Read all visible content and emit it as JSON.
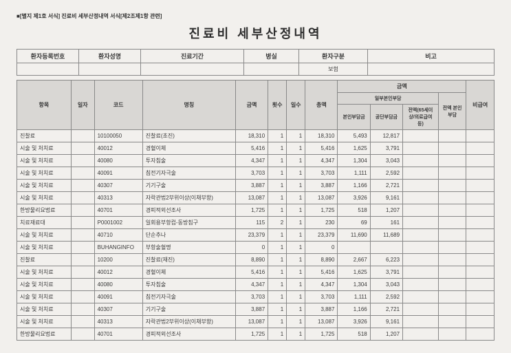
{
  "form_note": "■[별지 제1호 서식] 진료비 세부산정내역 서식[제2조제1항 관련]",
  "title": "진료비 세부산정내역",
  "patient_header": {
    "labels": {
      "reg_no": "환자등록번호",
      "name": "환자성명",
      "period": "진료기간",
      "room": "병실",
      "category": "환자구분",
      "remark": "비고"
    },
    "values": {
      "reg_no": "",
      "name": "",
      "period": "",
      "room": "",
      "category": "보험",
      "remark": ""
    }
  },
  "detail_header": {
    "item": "항목",
    "date": "일자",
    "code": "코드",
    "name": "명칭",
    "amount": "금액",
    "count": "횟수",
    "days": "일수",
    "total": "총액",
    "pay_group": "금액",
    "pay_sub1": "일부본인부담",
    "pay_self": "본인부담금",
    "pay_corp": "공단부담금",
    "pay_excess": "전액(65세이상/의료급여 등)",
    "pay_full": "전액 본인부담",
    "noncov": "비급여"
  },
  "rows": [
    {
      "item": "진찰료",
      "date": "",
      "code": "10100050",
      "name": "진찰료(초진)",
      "amount": "18,310",
      "count": "1",
      "days": "1",
      "total": "18,310",
      "self": "5,493",
      "corp": "12,817",
      "excess": "",
      "full": "",
      "noncov": ""
    },
    {
      "item": "시술 및 처치료",
      "date": "",
      "code": "40012",
      "name": "경혈이체",
      "amount": "5,416",
      "count": "1",
      "days": "1",
      "total": "5,416",
      "self": "1,625",
      "corp": "3,791",
      "excess": "",
      "full": "",
      "noncov": ""
    },
    {
      "item": "시술 및 처치료",
      "date": "",
      "code": "40080",
      "name": "투자침술",
      "amount": "4,347",
      "count": "1",
      "days": "1",
      "total": "4,347",
      "self": "1,304",
      "corp": "3,043",
      "excess": "",
      "full": "",
      "noncov": ""
    },
    {
      "item": "시술 및 처치료",
      "date": "",
      "code": "40091",
      "name": "침전기자극술",
      "amount": "3,703",
      "count": "1",
      "days": "1",
      "total": "3,703",
      "self": "1,111",
      "corp": "2,592",
      "excess": "",
      "full": "",
      "noncov": ""
    },
    {
      "item": "시술 및 처치료",
      "date": "",
      "code": "40307",
      "name": "기기구술",
      "amount": "3,887",
      "count": "1",
      "days": "1",
      "total": "3,887",
      "self": "1,166",
      "corp": "2,721",
      "excess": "",
      "full": "",
      "noncov": ""
    },
    {
      "item": "시술 및 처치료",
      "date": "",
      "code": "40313",
      "name": "자락관법2부위이상(이채부항)",
      "amount": "13,087",
      "count": "1",
      "days": "1",
      "total": "13,087",
      "self": "3,926",
      "corp": "9,161",
      "excess": "",
      "full": "",
      "noncov": ""
    },
    {
      "item": "한방물리요법료",
      "date": "",
      "code": "40701",
      "name": "경피적외선조사",
      "amount": "1,725",
      "count": "1",
      "days": "1",
      "total": "1,725",
      "self": "518",
      "corp": "1,207",
      "excess": "",
      "full": "",
      "noncov": ""
    },
    {
      "item": "치료재료대",
      "date": "",
      "code": "P0001002",
      "name": "일회용부항컵-동방침구",
      "amount": "115",
      "count": "2",
      "days": "1",
      "total": "230",
      "self": "69",
      "corp": "161",
      "excess": "",
      "full": "",
      "noncov": ""
    },
    {
      "item": "시술 및 처치료",
      "date": "",
      "code": "40710",
      "name": "단순추나",
      "amount": "23,379",
      "count": "1",
      "days": "1",
      "total": "23,379",
      "self": "11,690",
      "corp": "11,689",
      "excess": "",
      "full": "",
      "noncov": ""
    },
    {
      "item": "시술 및 처치료",
      "date": "",
      "code": "BUHANGINFO",
      "name": "부항술혈명",
      "amount": "0",
      "count": "1",
      "days": "1",
      "total": "0",
      "self": "",
      "corp": "",
      "excess": "",
      "full": "",
      "noncov": ""
    },
    {
      "item": "진찰료",
      "date": "",
      "code": "10200",
      "name": "진찰료(재진)",
      "amount": "8,890",
      "count": "1",
      "days": "1",
      "total": "8,890",
      "self": "2,667",
      "corp": "6,223",
      "excess": "",
      "full": "",
      "noncov": ""
    },
    {
      "item": "시술 및 처치료",
      "date": "",
      "code": "40012",
      "name": "경혈이체",
      "amount": "5,416",
      "count": "1",
      "days": "1",
      "total": "5,416",
      "self": "1,625",
      "corp": "3,791",
      "excess": "",
      "full": "",
      "noncov": ""
    },
    {
      "item": "시술 및 처치료",
      "date": "",
      "code": "40080",
      "name": "투자침술",
      "amount": "4,347",
      "count": "1",
      "days": "1",
      "total": "4,347",
      "self": "1,304",
      "corp": "3,043",
      "excess": "",
      "full": "",
      "noncov": ""
    },
    {
      "item": "시술 및 처치료",
      "date": "",
      "code": "40091",
      "name": "침전기자극술",
      "amount": "3,703",
      "count": "1",
      "days": "1",
      "total": "3,703",
      "self": "1,111",
      "corp": "2,592",
      "excess": "",
      "full": "",
      "noncov": ""
    },
    {
      "item": "시술 및 처치료",
      "date": "",
      "code": "40307",
      "name": "기기구술",
      "amount": "3,887",
      "count": "1",
      "days": "1",
      "total": "3,887",
      "self": "1,166",
      "corp": "2,721",
      "excess": "",
      "full": "",
      "noncov": ""
    },
    {
      "item": "시술 및 처치료",
      "date": "",
      "code": "40313",
      "name": "자락관법2부위이상(이채부항)",
      "amount": "13,087",
      "count": "1",
      "days": "1",
      "total": "13,087",
      "self": "3,926",
      "corp": "9,161",
      "excess": "",
      "full": "",
      "noncov": ""
    },
    {
      "item": "한방물리요법료",
      "date": "",
      "code": "40701",
      "name": "경피적외선조사",
      "amount": "1,725",
      "count": "1",
      "days": "1",
      "total": "1,725",
      "self": "518",
      "corp": "1,207",
      "excess": "",
      "full": "",
      "noncov": ""
    }
  ]
}
